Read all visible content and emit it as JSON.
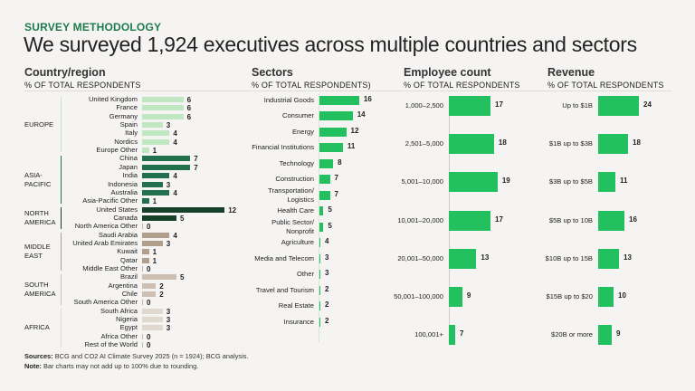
{
  "header": {
    "kicker": "SURVEY METHODOLOGY",
    "title": "We surveyed 1,924 executives across multiple countries and sectors"
  },
  "footer": {
    "sources_label": "Sources:",
    "sources": "BCG and CO2 AI Climate Survey 2025 (n = 1924); BCG analysis.",
    "note_label": "Note:",
    "note": "Bar charts may not add up to 100% due to rounding."
  },
  "chart_data": [
    {
      "type": "bar",
      "orientation": "horizontal",
      "title": "Country/region",
      "subtitle": "% OF TOTAL RESPONDENTS",
      "groups": [
        {
          "name": "EUROPE",
          "color": "#bfe8c2",
          "categories": [
            "United Kingdom",
            "France",
            "Germany",
            "Spain",
            "Italy",
            "Nordics",
            "Europe Other"
          ],
          "values": [
            6,
            6,
            6,
            3,
            4,
            4,
            1
          ]
        },
        {
          "name": "ASIA-\nPACIFIC",
          "color": "#23704f",
          "categories": [
            "China",
            "Japan",
            "India",
            "Indonesia",
            "Australia",
            "Asia-Pacific Other"
          ],
          "values": [
            7,
            7,
            4,
            3,
            4,
            1
          ]
        },
        {
          "name": "NORTH\nAMERICA",
          "color": "#17402a",
          "categories": [
            "United States",
            "Canada",
            "North America Other"
          ],
          "values": [
            12,
            5,
            0
          ]
        },
        {
          "name": "MIDDLE\nEAST",
          "color": "#b19e8d",
          "categories": [
            "Saudi Arabia",
            "United Arab Emirates",
            "Kuwait",
            "Qatar",
            "Middle East Other"
          ],
          "values": [
            4,
            3,
            1,
            1,
            0
          ]
        },
        {
          "name": "SOUTH\nAMERICA",
          "color": "#cdc0b3",
          "categories": [
            "Brazil",
            "Argentina",
            "Chile",
            "South America Other"
          ],
          "values": [
            5,
            2,
            2,
            0
          ]
        },
        {
          "name": "AFRICA",
          "color": "#dfd9d0",
          "categories": [
            "South Africa",
            "Nigeria",
            "Egypt",
            "Africa Other",
            "Rest of the World"
          ],
          "values": [
            3,
            3,
            3,
            0,
            0
          ]
        }
      ]
    },
    {
      "type": "bar",
      "orientation": "horizontal",
      "title": "Sectors",
      "subtitle": "% OF TOTAL RESPONDENTS)",
      "color": "#22c05f",
      "categories": [
        "Industrial Goods",
        "Consumer",
        "Energy",
        "Financial Institutions",
        "Technology",
        "Construction",
        "Transportation/\nLogistics",
        "Health Care",
        "Public Sector/\nNonprofit",
        "Agriculture",
        "Media and Telecom",
        "Other",
        "Travel and Tourism",
        "Real Estate",
        "Insurance"
      ],
      "values": [
        16,
        14,
        12,
        11,
        8,
        7,
        7,
        5,
        5,
        4,
        3,
        3,
        2,
        2,
        2
      ]
    },
    {
      "type": "bar",
      "orientation": "horizontal",
      "title": "Employee count",
      "subtitle": "% OF TOTAL RESPONDENTS",
      "color": "#22c05f",
      "categories": [
        "1,000–2,500",
        "2,501–5,000",
        "5,001–10,000",
        "10,001–20,000",
        "20,001–50,000",
        "50,001–100,000",
        "100,001+"
      ],
      "values": [
        17,
        18,
        19,
        17,
        13,
        9,
        7
      ]
    },
    {
      "type": "bar",
      "orientation": "horizontal",
      "title": "Revenue",
      "subtitle": "% OF TOTAL RESPONDENTS",
      "color": "#22c05f",
      "categories": [
        "Up to $1B",
        "$1B up to $3B",
        "$3B up to $5B",
        "$5B up to 10B",
        "$10B up to 15B",
        "$15B up to $20",
        "$20B or more"
      ],
      "values": [
        24,
        18,
        11,
        16,
        13,
        10,
        9
      ]
    }
  ]
}
